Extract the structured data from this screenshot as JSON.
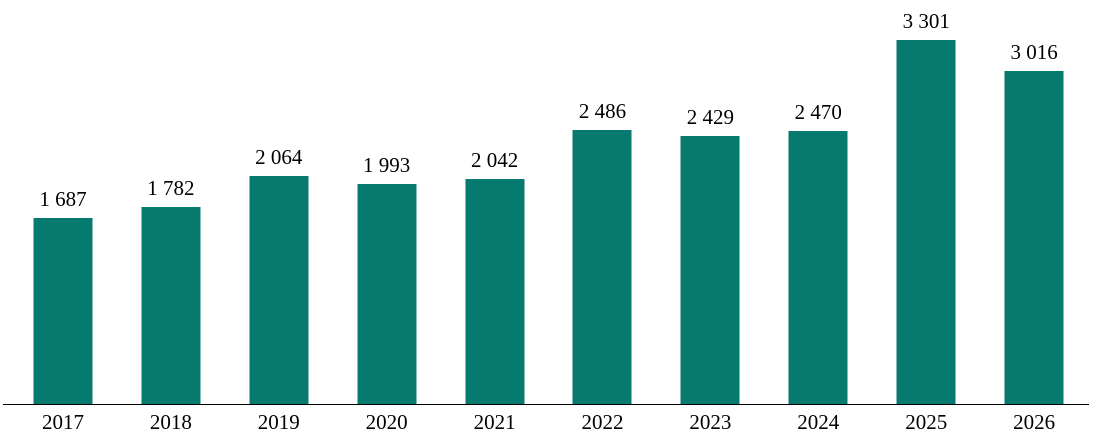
{
  "chart_data": {
    "type": "bar",
    "title": "",
    "xlabel": "",
    "ylabel": "",
    "categories": [
      "2017",
      "2018",
      "2019",
      "2020",
      "2021",
      "2022",
      "2023",
      "2024",
      "2025",
      "2026"
    ],
    "values": [
      1687,
      1782,
      2064,
      1993,
      2042,
      2486,
      2429,
      2470,
      3301,
      3016
    ],
    "value_labels": [
      "1 687",
      "1 782",
      "2 064",
      "1 993",
      "2 042",
      "2 486",
      "2 429",
      "2 470",
      "3 301",
      "3 016"
    ],
    "series_name": "",
    "bar_color": "#077a70",
    "label_color": "#000000",
    "axis_color": "#000000",
    "background_color": "#ffffff",
    "ylim": [
      0,
      3660
    ],
    "gridlines": false,
    "legend": false,
    "data_labels_visible": true,
    "thousands_separator": "space"
  }
}
